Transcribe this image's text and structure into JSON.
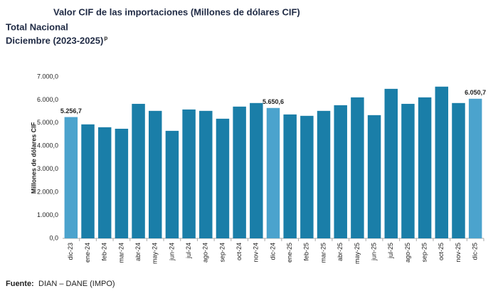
{
  "chart_data": {
    "type": "bar",
    "title": "Valor CIF de las importaciones (Millones de dólares CIF)",
    "subtitle": "Total Nacional",
    "period": "Diciembre (2023-2025)",
    "period_note": "p",
    "y_label": "Millones de dólares CIF",
    "source_label": "Fuente:",
    "source": "DIAN – DANE (IMPO)",
    "categories": [
      "dic-23",
      "ene-24",
      "feb-24",
      "mar-24",
      "abr-24",
      "may-24",
      "jun-24",
      "jul-24",
      "ago-24",
      "sep-24",
      "oct-24",
      "nov-24",
      "dic-24",
      "ene-25",
      "feb-25",
      "mar-25",
      "abr-25",
      "may-25",
      "jun-25",
      "jul-25",
      "ago-25",
      "sep-25",
      "oct-25",
      "nov-25",
      "dic-25"
    ],
    "values": [
      5256.7,
      4940,
      4815,
      4750,
      5830,
      5525,
      4660,
      5585,
      5525,
      5185,
      5710,
      5865,
      5650.6,
      5370,
      5310,
      5525,
      5770,
      6110,
      5340,
      6480,
      5830,
      6110,
      6575,
      5865,
      6050.7
    ],
    "value_labels": [
      "5.256,7",
      null,
      null,
      null,
      null,
      null,
      null,
      null,
      null,
      null,
      null,
      null,
      "5.650,6",
      null,
      null,
      null,
      null,
      null,
      null,
      null,
      null,
      null,
      null,
      null,
      "6.050,7"
    ],
    "colors": [
      "#4ba3cd",
      "#1a7ea8",
      "#1a7ea8",
      "#1a7ea8",
      "#1a7ea8",
      "#1a7ea8",
      "#1a7ea8",
      "#1a7ea8",
      "#1a7ea8",
      "#1a7ea8",
      "#1a7ea8",
      "#1a7ea8",
      "#4ba3cd",
      "#1a7ea8",
      "#1a7ea8",
      "#1a7ea8",
      "#1a7ea8",
      "#1a7ea8",
      "#1a7ea8",
      "#1a7ea8",
      "#1a7ea8",
      "#1a7ea8",
      "#1a7ea8",
      "#1a7ea8",
      "#4ba3cd"
    ],
    "ylim": [
      0,
      7000
    ],
    "yticks": [
      {
        "value": 0,
        "label": "0,0"
      },
      {
        "value": 1000,
        "label": "1.000,0"
      },
      {
        "value": 2000,
        "label": "2.000,0"
      },
      {
        "value": 3000,
        "label": "3.000,0"
      },
      {
        "value": 4000,
        "label": "4.000,0"
      },
      {
        "value": 5000,
        "label": "5.000,0"
      },
      {
        "value": 6000,
        "label": "6.000,0"
      },
      {
        "value": 7000,
        "label": "7.000,0"
      }
    ],
    "grid": false
  }
}
